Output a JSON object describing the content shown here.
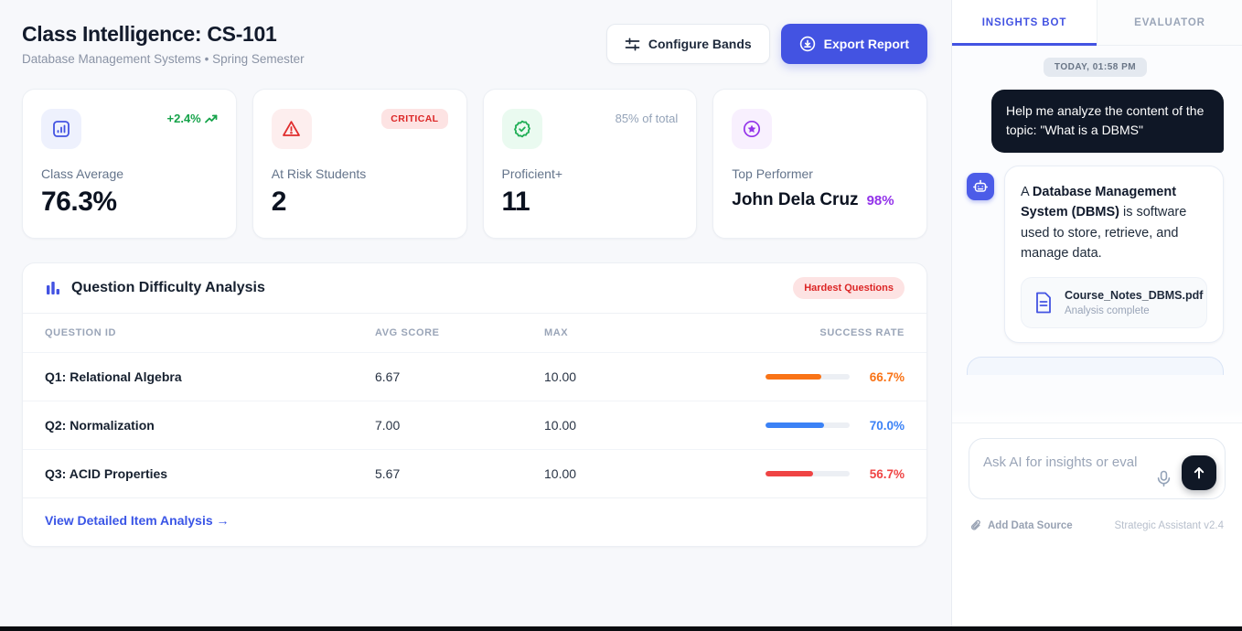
{
  "colors": {
    "primary_indigo": "#4353e2",
    "success_green": "#16a34a",
    "danger_red": "#dc2626",
    "purple": "#9333ea",
    "orange": "#f97316",
    "blue": "#2f6be6",
    "dark_navy": "#0f1726"
  },
  "header": {
    "title": "Class Intelligence: CS-101",
    "subtitle": "Database Management Systems • Spring Semester",
    "configure_label": "Configure Bands",
    "export_label": "Export Report"
  },
  "stats": [
    {
      "icon": "bar-chart-icon",
      "label": "Class Average",
      "value": "76.3%",
      "trend": "+2.4%"
    },
    {
      "icon": "alert-triangle-icon",
      "label": "At Risk Students",
      "value": "2",
      "badge": "CRITICAL"
    },
    {
      "icon": "badge-check-icon",
      "label": "Proficient+",
      "value": "11",
      "note": "85% of total"
    },
    {
      "icon": "star-circle-icon",
      "label": "Top Performer",
      "value": "John Dela Cruz",
      "suffix": "98%"
    }
  ],
  "table": {
    "title": "Question Difficulty Analysis",
    "badge": "Hardest Questions",
    "columns": [
      "QUESTION ID",
      "AVG SCORE",
      "MAX",
      "SUCCESS RATE"
    ],
    "rows": [
      {
        "id": "Q1: Relational Algebra",
        "avg": "6.67",
        "max": "10.00",
        "rate": "66.7%",
        "pct": 66.7,
        "color": "#f97316"
      },
      {
        "id": "Q2: Normalization",
        "avg": "7.00",
        "max": "10.00",
        "rate": "70.0%",
        "pct": 70.0,
        "color": "#3b82f6"
      },
      {
        "id": "Q3: ACID Properties",
        "avg": "5.67",
        "max": "10.00",
        "rate": "56.7%",
        "pct": 56.7,
        "color": "#ef4444"
      }
    ],
    "footer_link": "View Detailed Item Analysis →"
  },
  "chat": {
    "tabs": [
      {
        "label": "INSIGHTS BOT",
        "active": true
      },
      {
        "label": "EVALUATOR",
        "active": false
      }
    ],
    "timestamp": "TODAY, 01:58 PM",
    "user_message": "Help me analyze the content of the topic: \"What is a DBMS\"",
    "bot_message": {
      "prefix": "A ",
      "bold": "Database Management System (DBMS)",
      "rest": " is software used to store, retrieve, and manage data."
    },
    "attachment": {
      "name": "Course_Notes_DBMS.pdf",
      "status": "Analysis complete"
    },
    "input_placeholder": "Ask AI for insights or evaluation...",
    "footer_left": "Add Data Source",
    "footer_right": "Strategic Assistant v2.4"
  }
}
